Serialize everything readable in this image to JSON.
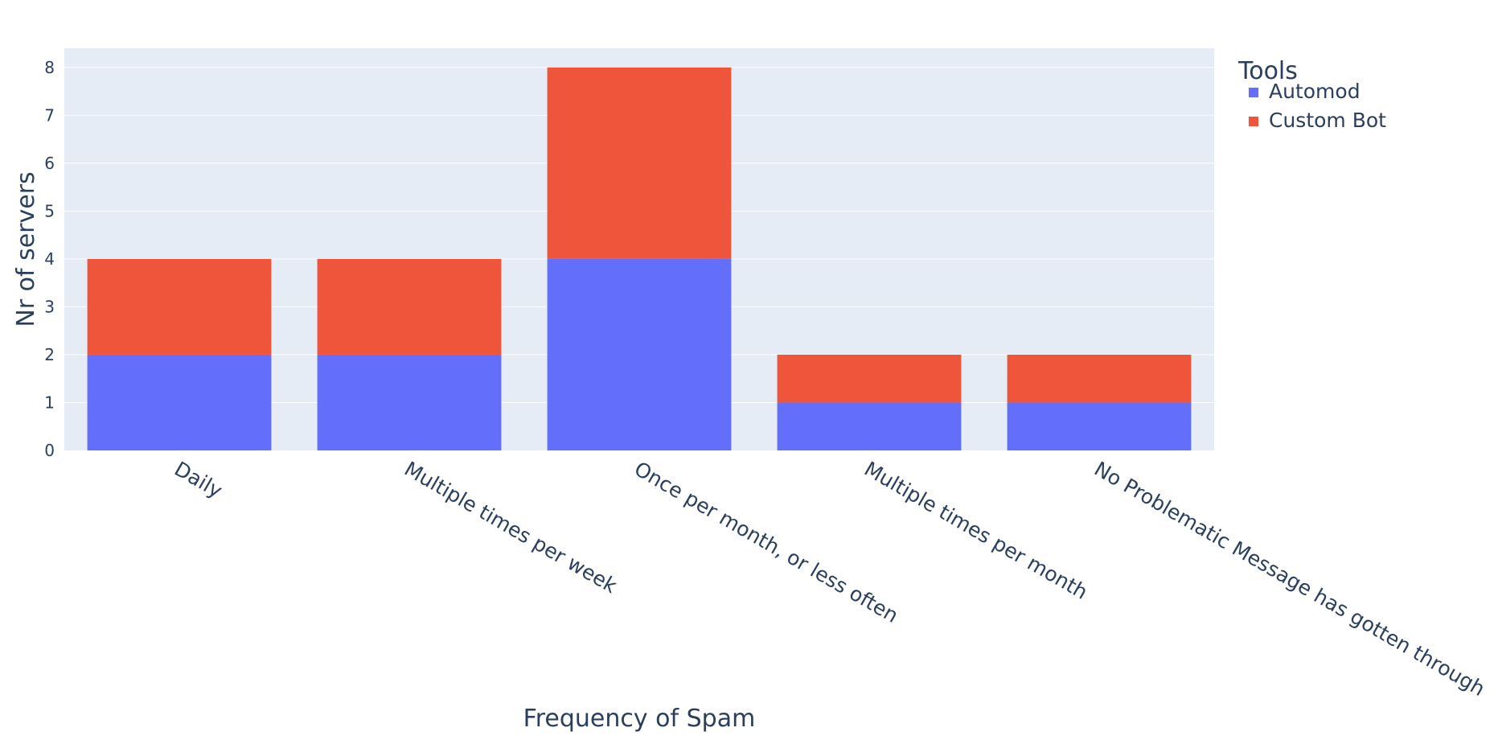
{
  "chart_data": {
    "type": "bar",
    "barmode": "stack",
    "categories": [
      "Daily",
      "Multiple times per week",
      "Once per month, or less often",
      "Multiple times per month",
      "No Problematic Message has gotten through"
    ],
    "series": [
      {
        "name": "Automod",
        "color": "#636efa",
        "values": [
          2,
          2,
          4,
          1,
          1
        ]
      },
      {
        "name": "Custom Bot",
        "color": "#ef553b",
        "values": [
          2,
          2,
          4,
          1,
          1
        ]
      }
    ],
    "xlabel": "Frequency of Spam",
    "ylabel": "Nr of servers",
    "ylim": [
      0,
      8.4
    ],
    "yticks": [
      0,
      1,
      2,
      3,
      4,
      5,
      6,
      7,
      8
    ],
    "legend_title": "Tools",
    "legend_position": "top-right",
    "grid": true,
    "plot_background": "#e5ecf6"
  }
}
